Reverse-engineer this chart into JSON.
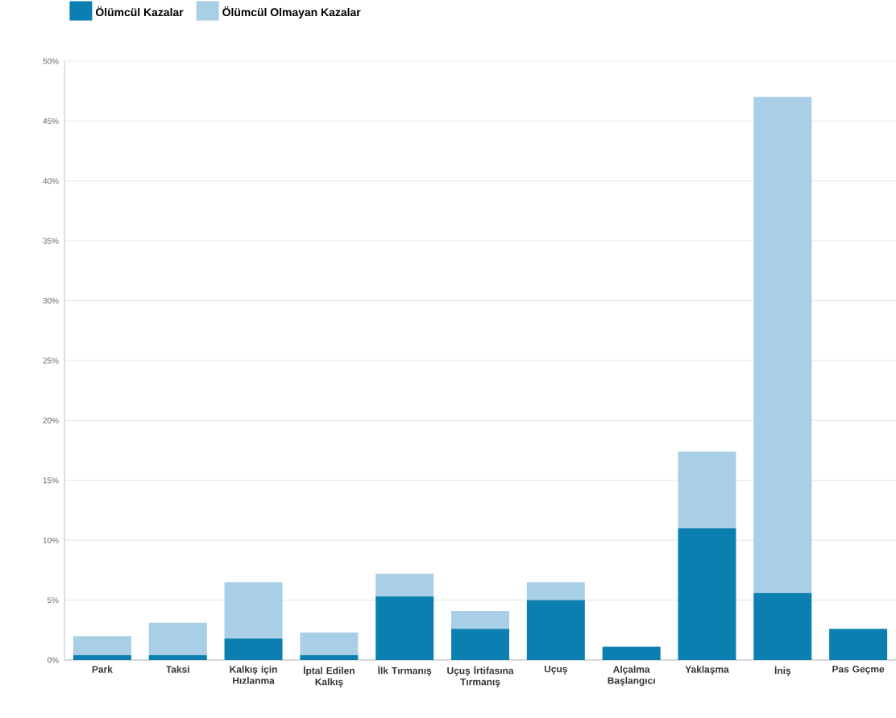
{
  "chart_data": {
    "type": "bar",
    "stacked": true,
    "categories": [
      "Park",
      "Taksi",
      "Kalkış için Hızlanma",
      "İptal Edilen Kalkış",
      "İlk Tırmanış",
      "Uçuş İrtifasına Tırmanış",
      "Uçuş",
      "Alçalma Başlangıcı",
      "Yaklaşma",
      "İniş",
      "Pas Geçme"
    ],
    "series": [
      {
        "name": "Ölümcül Kazalar",
        "color": "#0a7fb0",
        "values": [
          0.4,
          0.4,
          1.8,
          0.4,
          5.3,
          2.6,
          5.0,
          1.1,
          11.0,
          5.6,
          2.6
        ]
      },
      {
        "name": "Ölümcül Olmayan Kazalar",
        "color": "#a8cfe6",
        "values": [
          1.6,
          2.7,
          4.7,
          1.9,
          1.9,
          1.5,
          1.5,
          0,
          6.4,
          41.4,
          0
        ]
      }
    ],
    "ylim": [
      0,
      50
    ],
    "yticks": [
      {
        "value": 0,
        "label": "0%"
      },
      {
        "value": 5,
        "label": "5%"
      },
      {
        "value": 10,
        "label": "10%"
      },
      {
        "value": 15,
        "label": "15%"
      },
      {
        "value": 20,
        "label": "20%"
      },
      {
        "value": 25,
        "label": "25%"
      },
      {
        "value": 30,
        "label": "30%"
      },
      {
        "value": 35,
        "label": "35%"
      },
      {
        "value": 40,
        "label": "40%"
      },
      {
        "value": 45,
        "label": "45%"
      },
      {
        "value": 50,
        "label": "50%"
      }
    ],
    "grid": "y",
    "legend": "top left"
  }
}
